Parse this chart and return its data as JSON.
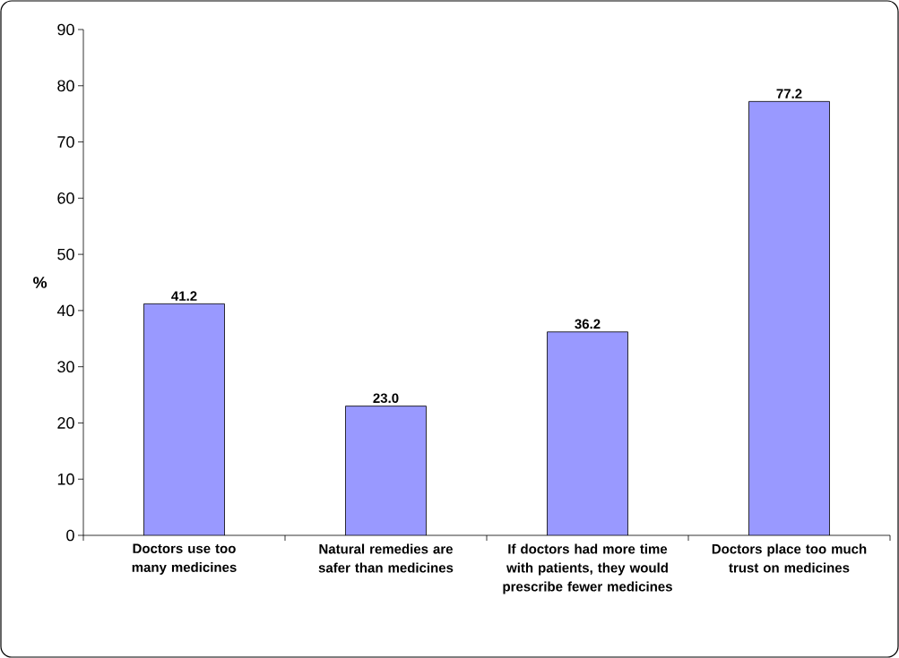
{
  "chart_data": {
    "type": "bar",
    "ylabel": "%",
    "categories": [
      "Doctors use too many medicines",
      "Natural remedies are safer than medicines",
      "If doctors had more time with patients, they would prescribe fewer medicines",
      "Doctors place too much trust on medicines"
    ],
    "values": [
      41.2,
      23.0,
      36.2,
      77.2
    ],
    "value_labels": [
      "41.2",
      "23.0",
      "36.2",
      "77.2"
    ],
    "color": "#9999ff",
    "ylim": [
      0,
      90
    ],
    "yticks": [
      0,
      10,
      20,
      30,
      40,
      50,
      60,
      70,
      80,
      90
    ]
  }
}
